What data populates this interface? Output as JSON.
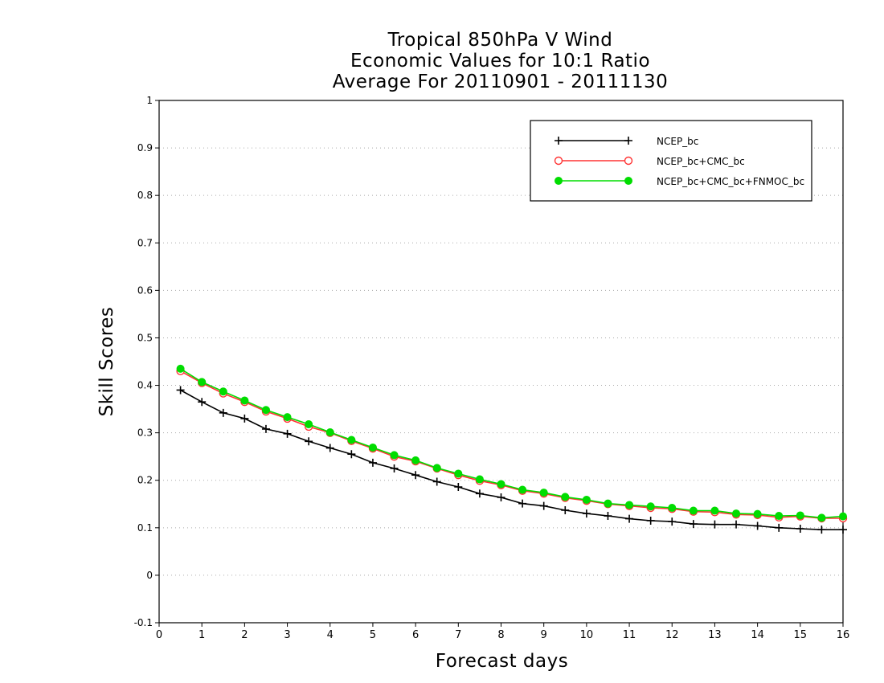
{
  "chart_data": {
    "type": "line",
    "title": [
      "Tropical 850hPa V Wind",
      "Economic Values for 10:1 Ratio",
      "Average For 20110901 - 20111130"
    ],
    "xlabel": "Forecast days",
    "ylabel": "Skill Scores",
    "xlim": [
      0,
      16
    ],
    "ylim": [
      -0.1,
      1
    ],
    "xticks": [
      0,
      1,
      2,
      3,
      4,
      5,
      6,
      7,
      8,
      9,
      10,
      11,
      12,
      13,
      14,
      15,
      16
    ],
    "yticks": [
      -0.1,
      0,
      0.1,
      0.2,
      0.3,
      0.4,
      0.5,
      0.6,
      0.7,
      0.8,
      0.9,
      1
    ],
    "ytick_labels": [
      "-0.1",
      "0",
      "0.1",
      "0.2",
      "0.3",
      "0.4",
      "0.5",
      "0.6",
      "0.7",
      "0.8",
      "0.9",
      "1"
    ],
    "grid": "horizontal dotted",
    "legend_position": "top-right",
    "x": [
      0.5,
      1,
      1.5,
      2,
      2.5,
      3,
      3.5,
      4,
      4.5,
      5,
      5.5,
      6,
      6.5,
      7,
      7.5,
      8,
      8.5,
      9,
      9.5,
      10,
      10.5,
      11,
      11.5,
      12,
      12.5,
      13,
      13.5,
      14,
      14.5,
      15,
      15.5,
      16
    ],
    "series": [
      {
        "name": "NCEP_bc",
        "color": "#000000",
        "marker": "plus",
        "values": [
          0.39,
          0.365,
          0.342,
          0.33,
          0.308,
          0.298,
          0.282,
          0.268,
          0.255,
          0.237,
          0.225,
          0.211,
          0.197,
          0.186,
          0.172,
          0.164,
          0.151,
          0.146,
          0.137,
          0.13,
          0.125,
          0.119,
          0.115,
          0.113,
          0.108,
          0.107,
          0.107,
          0.104,
          0.1,
          0.098,
          0.096,
          0.096
        ]
      },
      {
        "name": "NCEP_bc+CMC_bc",
        "color": "#ff3333",
        "marker": "open-circle",
        "values": [
          0.43,
          0.405,
          0.383,
          0.365,
          0.345,
          0.33,
          0.313,
          0.3,
          0.283,
          0.267,
          0.25,
          0.24,
          0.225,
          0.211,
          0.199,
          0.19,
          0.178,
          0.172,
          0.163,
          0.157,
          0.15,
          0.146,
          0.142,
          0.14,
          0.134,
          0.133,
          0.128,
          0.127,
          0.122,
          0.124,
          0.12,
          0.12
        ]
      },
      {
        "name": "NCEP_bc+CMC_bc+FNMOC_bc",
        "color": "#00dd00",
        "marker": "filled-circle",
        "values": [
          0.435,
          0.407,
          0.387,
          0.368,
          0.348,
          0.333,
          0.318,
          0.301,
          0.285,
          0.269,
          0.253,
          0.242,
          0.226,
          0.214,
          0.202,
          0.192,
          0.18,
          0.174,
          0.165,
          0.159,
          0.151,
          0.148,
          0.145,
          0.142,
          0.136,
          0.136,
          0.13,
          0.129,
          0.125,
          0.126,
          0.121,
          0.124
        ]
      }
    ]
  }
}
